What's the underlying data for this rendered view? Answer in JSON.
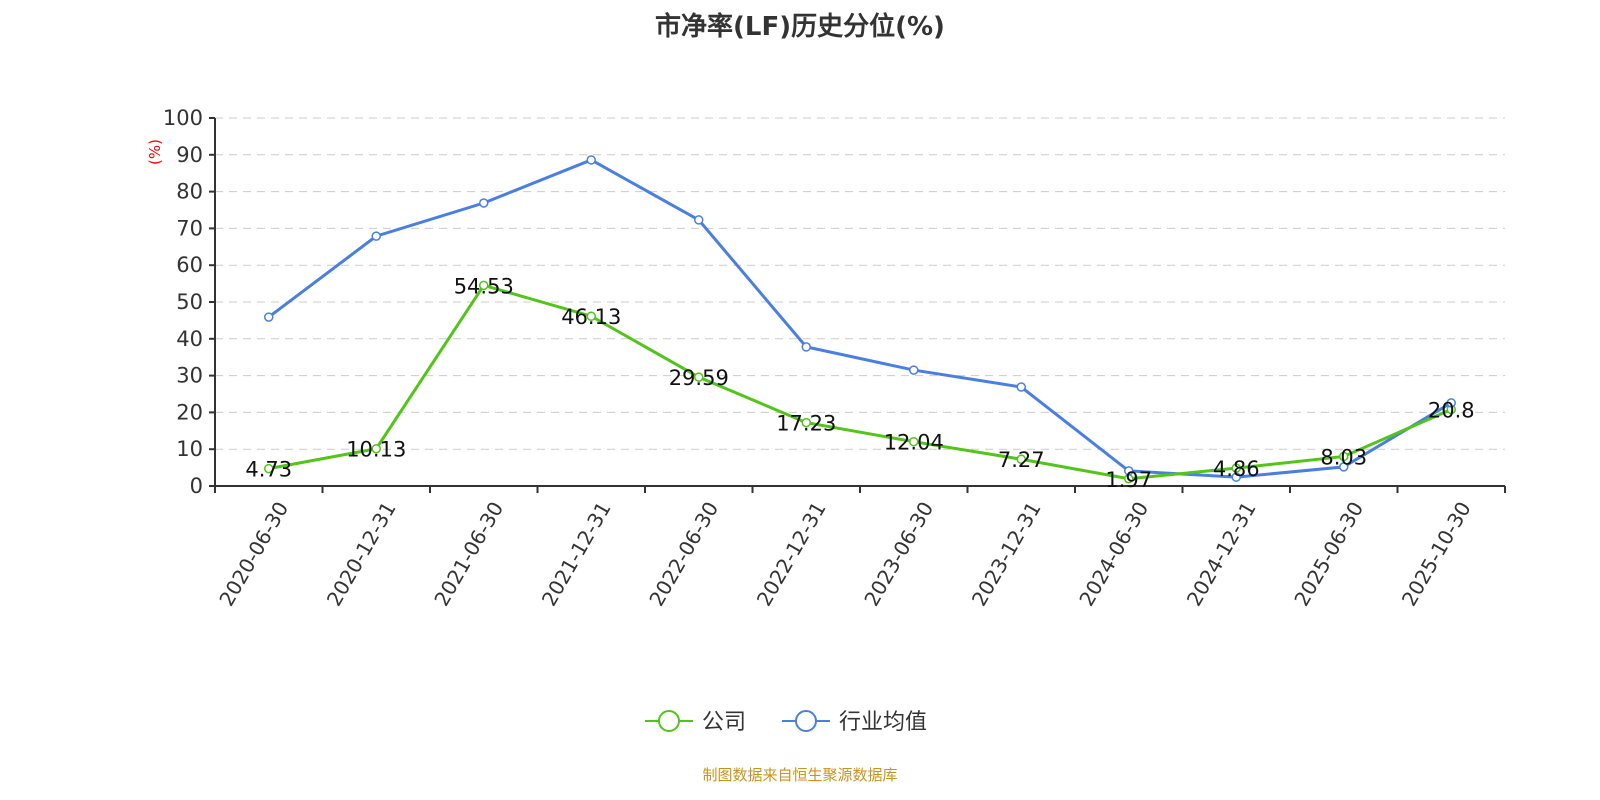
{
  "chart_data": {
    "type": "line",
    "title": "市净率(LF)历史分位(%)",
    "ylabel": "(%)",
    "xlabel": "",
    "ylim": [
      0,
      100
    ],
    "yticks": [
      0,
      10,
      20,
      30,
      40,
      50,
      60,
      70,
      80,
      90,
      100
    ],
    "grid": true,
    "legend_position": "bottom",
    "categories": [
      "2020-06-30",
      "2020-12-31",
      "2021-06-30",
      "2021-12-31",
      "2022-06-30",
      "2022-12-31",
      "2023-06-30",
      "2023-12-31",
      "2024-06-30",
      "2024-12-31",
      "2025-06-30",
      "2025-10-30"
    ],
    "series": [
      {
        "name": "公司",
        "color": "#52c41a",
        "labels": true,
        "values": [
          4.73,
          10.13,
          54.53,
          46.13,
          29.59,
          17.23,
          12.04,
          7.27,
          1.97,
          4.86,
          8.03,
          20.8
        ]
      },
      {
        "name": "行业均值",
        "color": "#4a7fe0",
        "labels": false,
        "values": [
          45.9,
          67.9,
          76.9,
          88.6,
          72.3,
          37.8,
          31.5,
          26.9,
          4.1,
          2.4,
          5.2,
          22.6
        ]
      }
    ]
  },
  "footer": "制图数据来自恒生聚源数据库"
}
